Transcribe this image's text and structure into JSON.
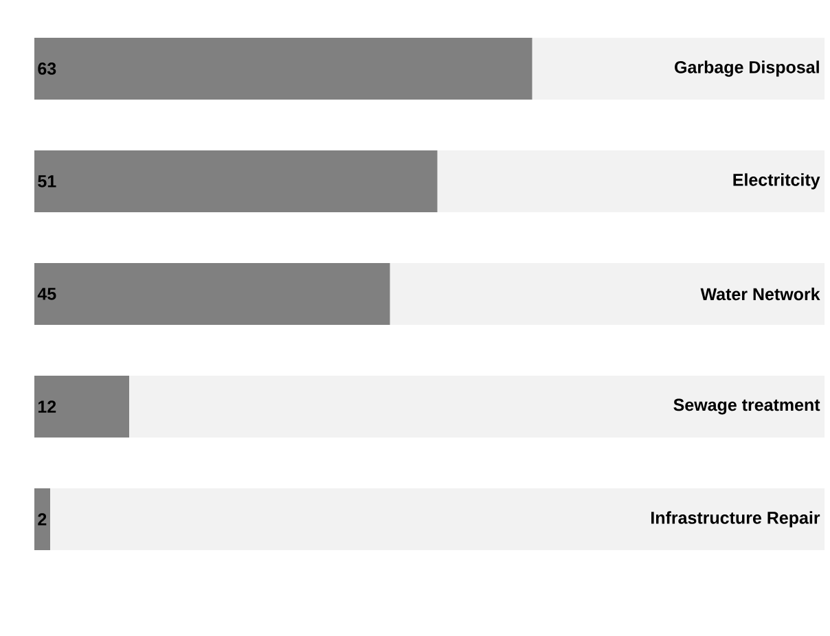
{
  "chart_data": {
    "type": "bar",
    "orientation": "horizontal",
    "categories": [
      "Garbage Disposal",
      "Electritcity",
      "Water Network",
      "Sewage treatment",
      "Infrastructure Repair"
    ],
    "values": [
      63,
      51,
      45,
      12,
      2
    ],
    "color": "#808080",
    "xlim": [
      0,
      100
    ],
    "data_labels": true
  }
}
